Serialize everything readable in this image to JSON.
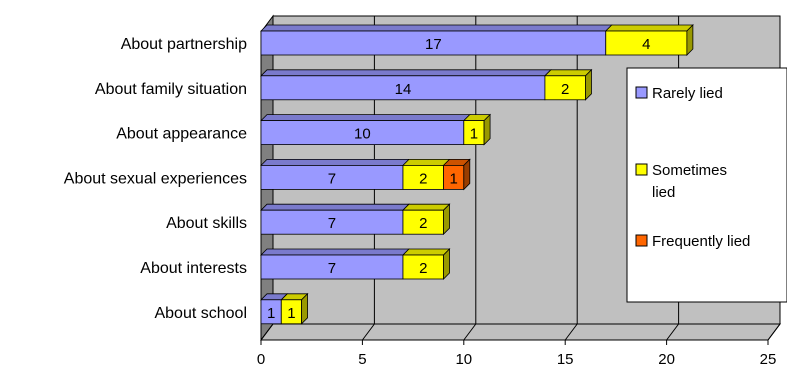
{
  "chart_data": {
    "type": "bar",
    "orientation": "horizontal",
    "stacked": true,
    "three_d": true,
    "categories": [
      "About partnership",
      "About family situation",
      "About appearance",
      "About sexual experiences",
      "About skills",
      "About interests",
      "About school"
    ],
    "series": [
      {
        "name": "Rarely lied",
        "color": "#9999ff",
        "values": [
          17,
          14,
          10,
          7,
          7,
          7,
          1
        ]
      },
      {
        "name": "Sometimes lied",
        "color": "#ffff00",
        "values": [
          4,
          2,
          1,
          2,
          2,
          2,
          1
        ]
      },
      {
        "name": "Frequently lied",
        "color": "#ff6600",
        "values": [
          0,
          0,
          0,
          1,
          0,
          0,
          0
        ]
      }
    ],
    "xlim": [
      0,
      25
    ],
    "xticks": [
      0,
      5,
      10,
      15,
      20,
      25
    ],
    "grid": true,
    "legend": "right"
  }
}
